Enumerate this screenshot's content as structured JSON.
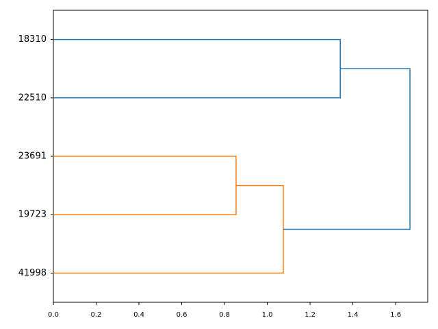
{
  "chart_data": {
    "type": "dendrogram",
    "orientation": "left",
    "leaves": [
      "18310",
      "22510",
      "23691",
      "19723",
      "41998"
    ],
    "links": [
      {
        "children": [
          2,
          3
        ],
        "height": 0.854,
        "color": "#ff7f0e"
      },
      {
        "children": [
          5,
          4
        ],
        "height": 1.075,
        "color": "#ff7f0e"
      },
      {
        "children": [
          0,
          1
        ],
        "height": 1.341,
        "color": "#1f77b4"
      },
      {
        "children": [
          7,
          6
        ],
        "height": 1.667,
        "color": "#1f77b4"
      }
    ],
    "xlim": [
      0,
      1.75
    ],
    "xticks": [
      {
        "value": 0,
        "label": "0.0"
      },
      0.2,
      0.4,
      0.6,
      0.8,
      {
        "value": 1,
        "label": "1.0"
      },
      1.2,
      1.4,
      1.6
    ],
    "grid": false
  }
}
